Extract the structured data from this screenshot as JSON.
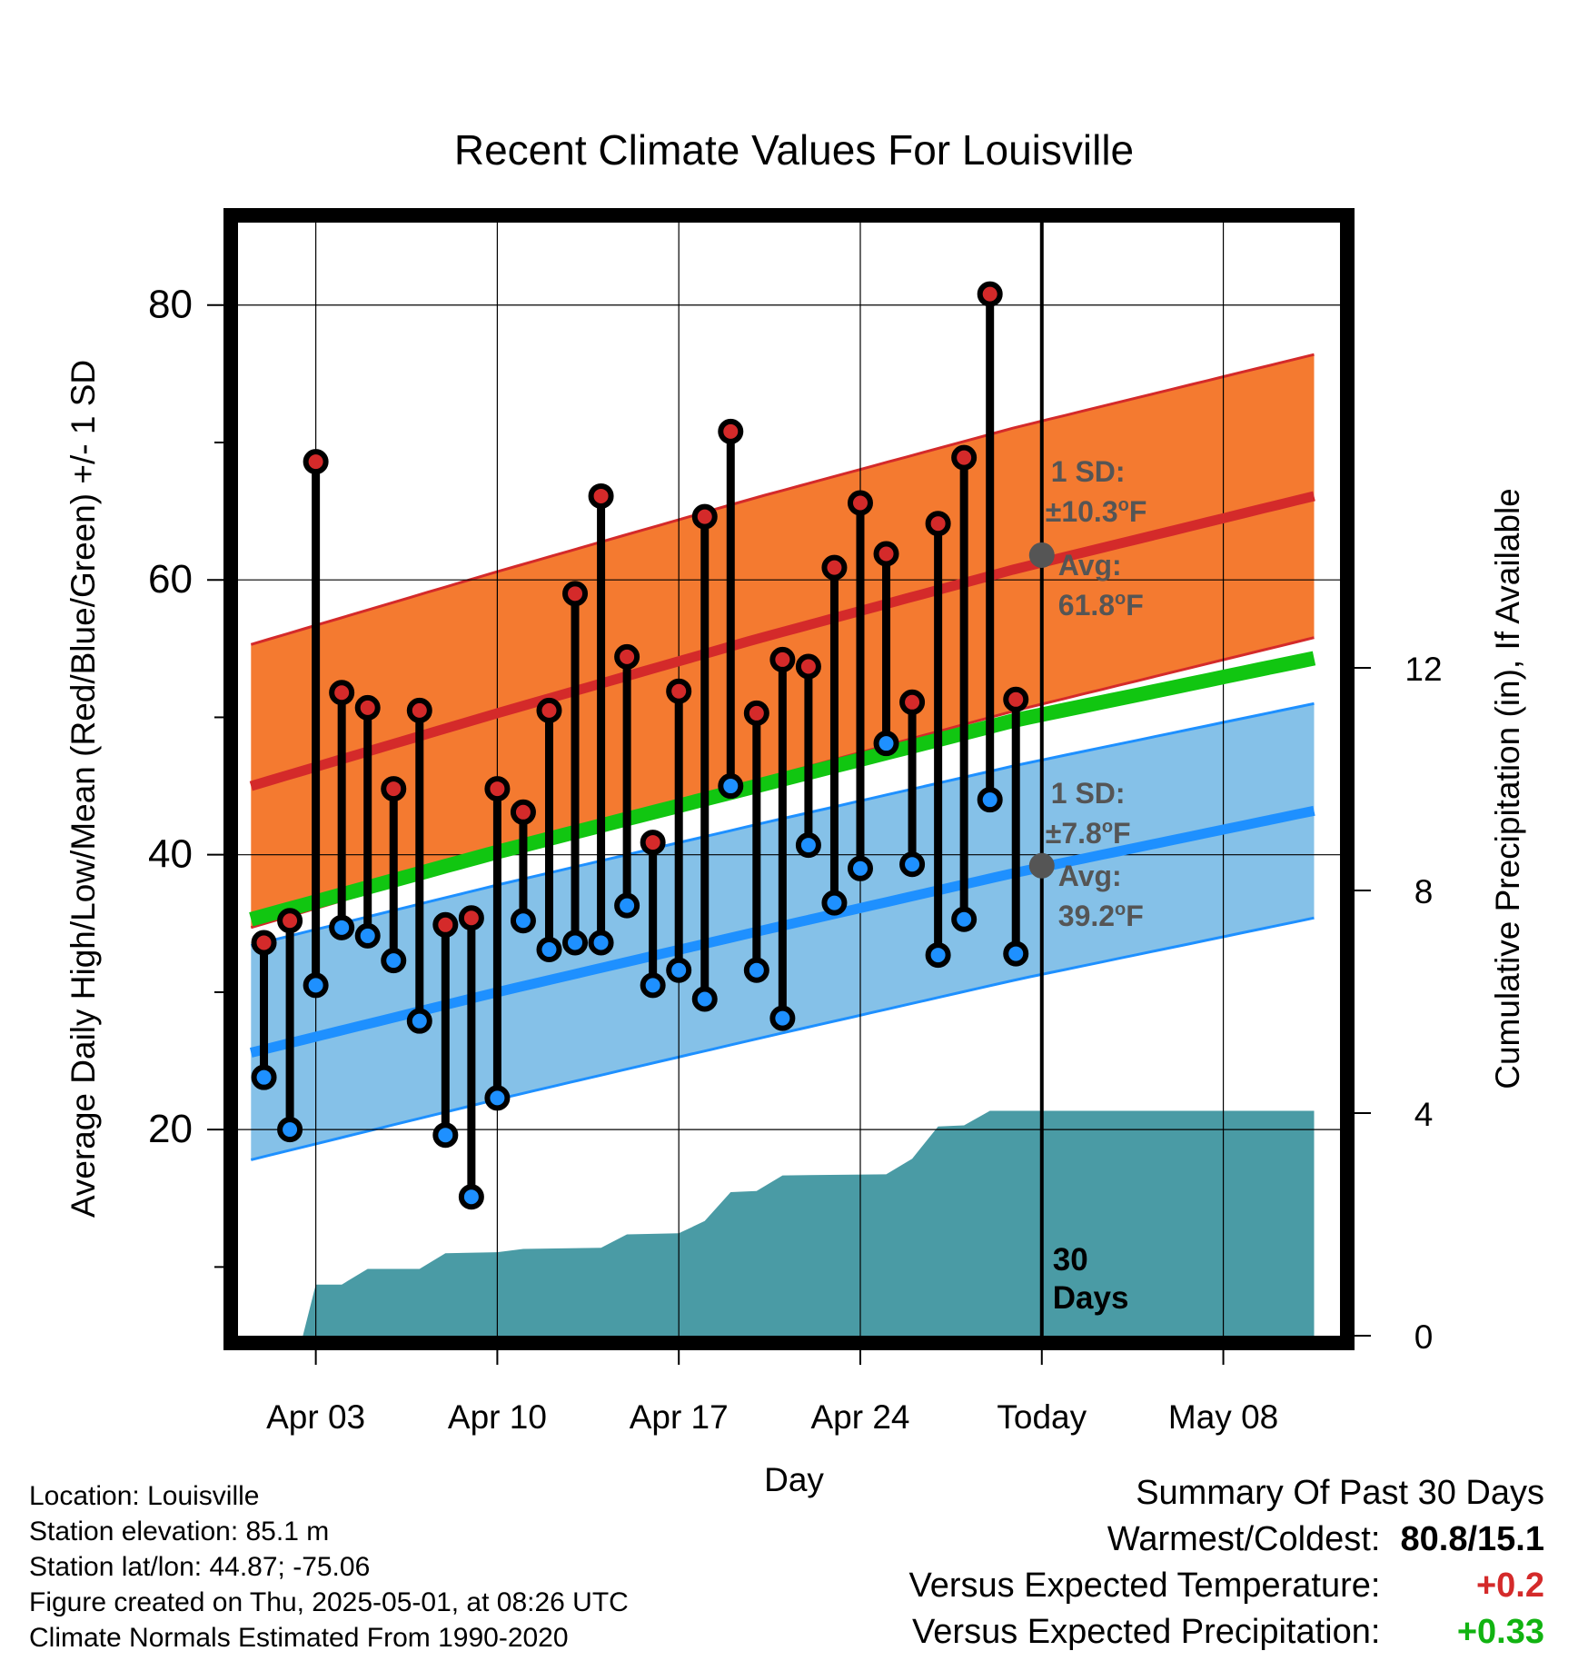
{
  "chart_data": {
    "type": "line",
    "title": "Recent Climate Values For Louisville",
    "xlabel": "Day",
    "ylabel_left": "Average Daily High/Low/Mean (Red/Blue/Green) +/- 1 SD",
    "ylabel_right": "Cumulative Precipitation (in), If Available",
    "x_start": "Mar 31",
    "x_end": "May 11",
    "x_ticks": [
      {
        "day": 3,
        "label": "Apr 03"
      },
      {
        "day": 10,
        "label": "Apr 10"
      },
      {
        "day": 17,
        "label": "Apr 17"
      },
      {
        "day": 24,
        "label": "Apr 24"
      },
      {
        "day": 31,
        "label": "Today"
      },
      {
        "day": 38,
        "label": "May 08"
      }
    ],
    "ylim_left": [
      5,
      86
    ],
    "y_ticks_left": [
      20,
      40,
      60,
      80
    ],
    "ylim_right": [
      0,
      20
    ],
    "y_ticks_right": [
      0,
      4,
      8,
      12
    ],
    "grid": true,
    "today_day": 31,
    "today_label": "30 Days",
    "normal_high": {
      "name": "Red",
      "color": "#d42a2a",
      "band_color": "#f47a30",
      "values": [
        [
          0.5,
          45.0
        ],
        [
          10,
          50.3
        ],
        [
          20,
          55.7
        ],
        [
          30,
          60.8
        ],
        [
          41.5,
          66.1
        ]
      ],
      "sd_label": "1 SD:",
      "sd_text": "±10.3",
      "avg_label": "Avg:",
      "avg_text": "61.8",
      "sd": 10.3,
      "avg_today": 61.8
    },
    "normal_low": {
      "name": "Blue",
      "color": "#1e90ff",
      "band_color": "#85c1e8",
      "values": [
        [
          0.5,
          25.6
        ],
        [
          10,
          30.0
        ],
        [
          20,
          34.4
        ],
        [
          30,
          38.7
        ],
        [
          41.5,
          43.2
        ]
      ],
      "sd_label": "1 SD:",
      "sd_text": "±7.8",
      "avg_label": "Avg:",
      "avg_text": "39.2",
      "sd": 7.8,
      "avg_today": 39.2
    },
    "normal_mean": {
      "name": "Green",
      "color": "#11c611",
      "values": [
        [
          0.5,
          35.3
        ],
        [
          10,
          40.2
        ],
        [
          20,
          45.0
        ],
        [
          30,
          49.8
        ],
        [
          41.5,
          54.3
        ]
      ]
    },
    "unit_symbol": "°F",
    "daily": [
      {
        "day": 1,
        "high": 33.6,
        "low": 23.8
      },
      {
        "day": 2,
        "high": 35.2,
        "low": 20.0
      },
      {
        "day": 3,
        "high": 68.6,
        "low": 30.5
      },
      {
        "day": 4,
        "high": 51.8,
        "low": 34.7
      },
      {
        "day": 5,
        "high": 50.7,
        "low": 34.1
      },
      {
        "day": 6,
        "high": 44.8,
        "low": 32.3
      },
      {
        "day": 7,
        "high": 50.5,
        "low": 27.9
      },
      {
        "day": 8,
        "high": 34.9,
        "low": 19.6
      },
      {
        "day": 9,
        "high": 35.4,
        "low": 15.1
      },
      {
        "day": 10,
        "high": 44.8,
        "low": 22.3
      },
      {
        "day": 11,
        "high": 43.1,
        "low": 35.2
      },
      {
        "day": 12,
        "high": 50.5,
        "low": 33.1
      },
      {
        "day": 13,
        "high": 59.0,
        "low": 33.6
      },
      {
        "day": 14,
        "high": 66.1,
        "low": 33.6
      },
      {
        "day": 15,
        "high": 54.4,
        "low": 36.3
      },
      {
        "day": 16,
        "high": 40.9,
        "low": 30.5
      },
      {
        "day": 17,
        "high": 51.9,
        "low": 31.6
      },
      {
        "day": 18,
        "high": 64.6,
        "low": 29.5
      },
      {
        "day": 19,
        "high": 70.8,
        "low": 45.0
      },
      {
        "day": 20,
        "high": 50.3,
        "low": 31.6
      },
      {
        "day": 21,
        "high": 54.2,
        "low": 28.1
      },
      {
        "day": 22,
        "high": 53.7,
        "low": 40.7
      },
      {
        "day": 23,
        "high": 60.9,
        "low": 36.5
      },
      {
        "day": 24,
        "high": 65.6,
        "low": 39.0
      },
      {
        "day": 25,
        "high": 61.9,
        "low": 48.1
      },
      {
        "day": 26,
        "high": 51.1,
        "low": 39.3
      },
      {
        "day": 27,
        "high": 64.1,
        "low": 32.7
      },
      {
        "day": 28,
        "high": 68.9,
        "low": 35.3
      },
      {
        "day": 29,
        "high": 80.8,
        "low": 44.0
      },
      {
        "day": 30,
        "high": 51.3,
        "low": 32.8
      }
    ],
    "precip_color": "#4a9ba5",
    "cumulative_precip": [
      {
        "day": 1.5,
        "value": 0.0
      },
      {
        "day": 2.5,
        "value": 0.0
      },
      {
        "day": 3.0,
        "value": 0.92
      },
      {
        "day": 4.0,
        "value": 0.92
      },
      {
        "day": 5.0,
        "value": 1.2
      },
      {
        "day": 7.0,
        "value": 1.2
      },
      {
        "day": 8.0,
        "value": 1.48
      },
      {
        "day": 10.0,
        "value": 1.5
      },
      {
        "day": 11.0,
        "value": 1.56
      },
      {
        "day": 14.0,
        "value": 1.58
      },
      {
        "day": 15.0,
        "value": 1.82
      },
      {
        "day": 17.0,
        "value": 1.84
      },
      {
        "day": 18.0,
        "value": 2.06
      },
      {
        "day": 19.0,
        "value": 2.58
      },
      {
        "day": 20.0,
        "value": 2.6
      },
      {
        "day": 21.0,
        "value": 2.88
      },
      {
        "day": 25.0,
        "value": 2.9
      },
      {
        "day": 26.0,
        "value": 3.18
      },
      {
        "day": 27.0,
        "value": 3.76
      },
      {
        "day": 28.0,
        "value": 3.78
      },
      {
        "day": 29.0,
        "value": 4.04
      },
      {
        "day": 41.5,
        "value": 4.04
      }
    ]
  },
  "info": {
    "location": "Location: Louisville",
    "elevation": "Station elevation: 85.1 m",
    "latlon": "Station lat/lon: 44.87; -75.06",
    "created": "Figure created on Thu, 2025-05-01, at 08:26 UTC",
    "normals": "Climate Normals Estimated From 1990-2020"
  },
  "summary": {
    "heading": "Summary Of Past 30 Days",
    "warm_cold_label": "Warmest/Coldest:",
    "warm_cold_value": "80.8/15.1",
    "temp_label": "Versus Expected Temperature:",
    "temp_value": "+0.2",
    "temp_color": "#d42a2a",
    "precip_label": "Versus Expected Precipitation:",
    "precip_value": "+0.33",
    "precip_color": "#11b311"
  }
}
